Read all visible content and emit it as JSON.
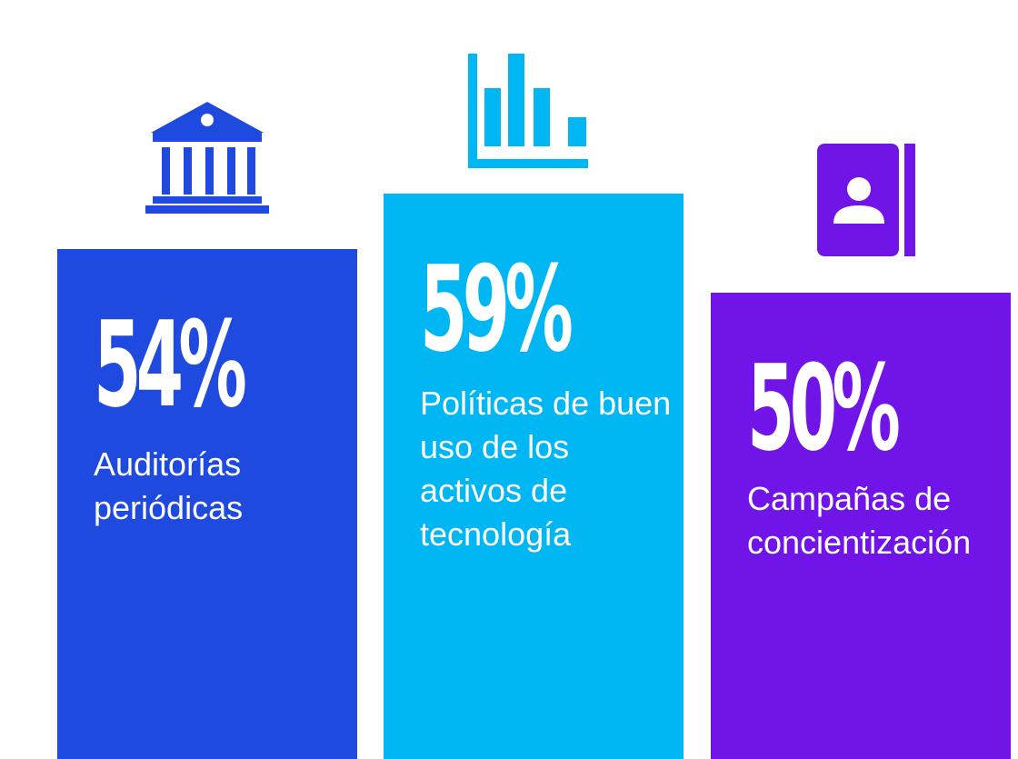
{
  "chart_data": {
    "type": "bar",
    "categories": [
      "Auditorías periódicas",
      "Políticas de buen uso de los activos de tecnología",
      "Campañas de concientización"
    ],
    "values": [
      54,
      59,
      50
    ],
    "value_labels": [
      "54%",
      "59%",
      "50%"
    ],
    "title": "",
    "xlabel": "",
    "ylabel": "",
    "ylim": [
      0,
      100
    ],
    "grid": false,
    "legend": "none"
  },
  "bars": [
    {
      "value_text": "54%",
      "label": "Auditorías periódicas",
      "color": "#1f4ae0",
      "icon": "bank-icon"
    },
    {
      "value_text": "59%",
      "label": "Políticas de buen uso de los activos de tecnología",
      "color": "#00b6f3",
      "icon": "bar-chart-icon"
    },
    {
      "value_text": "50%",
      "label": "Campañas de concientización",
      "color": "#7114e8",
      "icon": "contact-book-icon"
    }
  ]
}
